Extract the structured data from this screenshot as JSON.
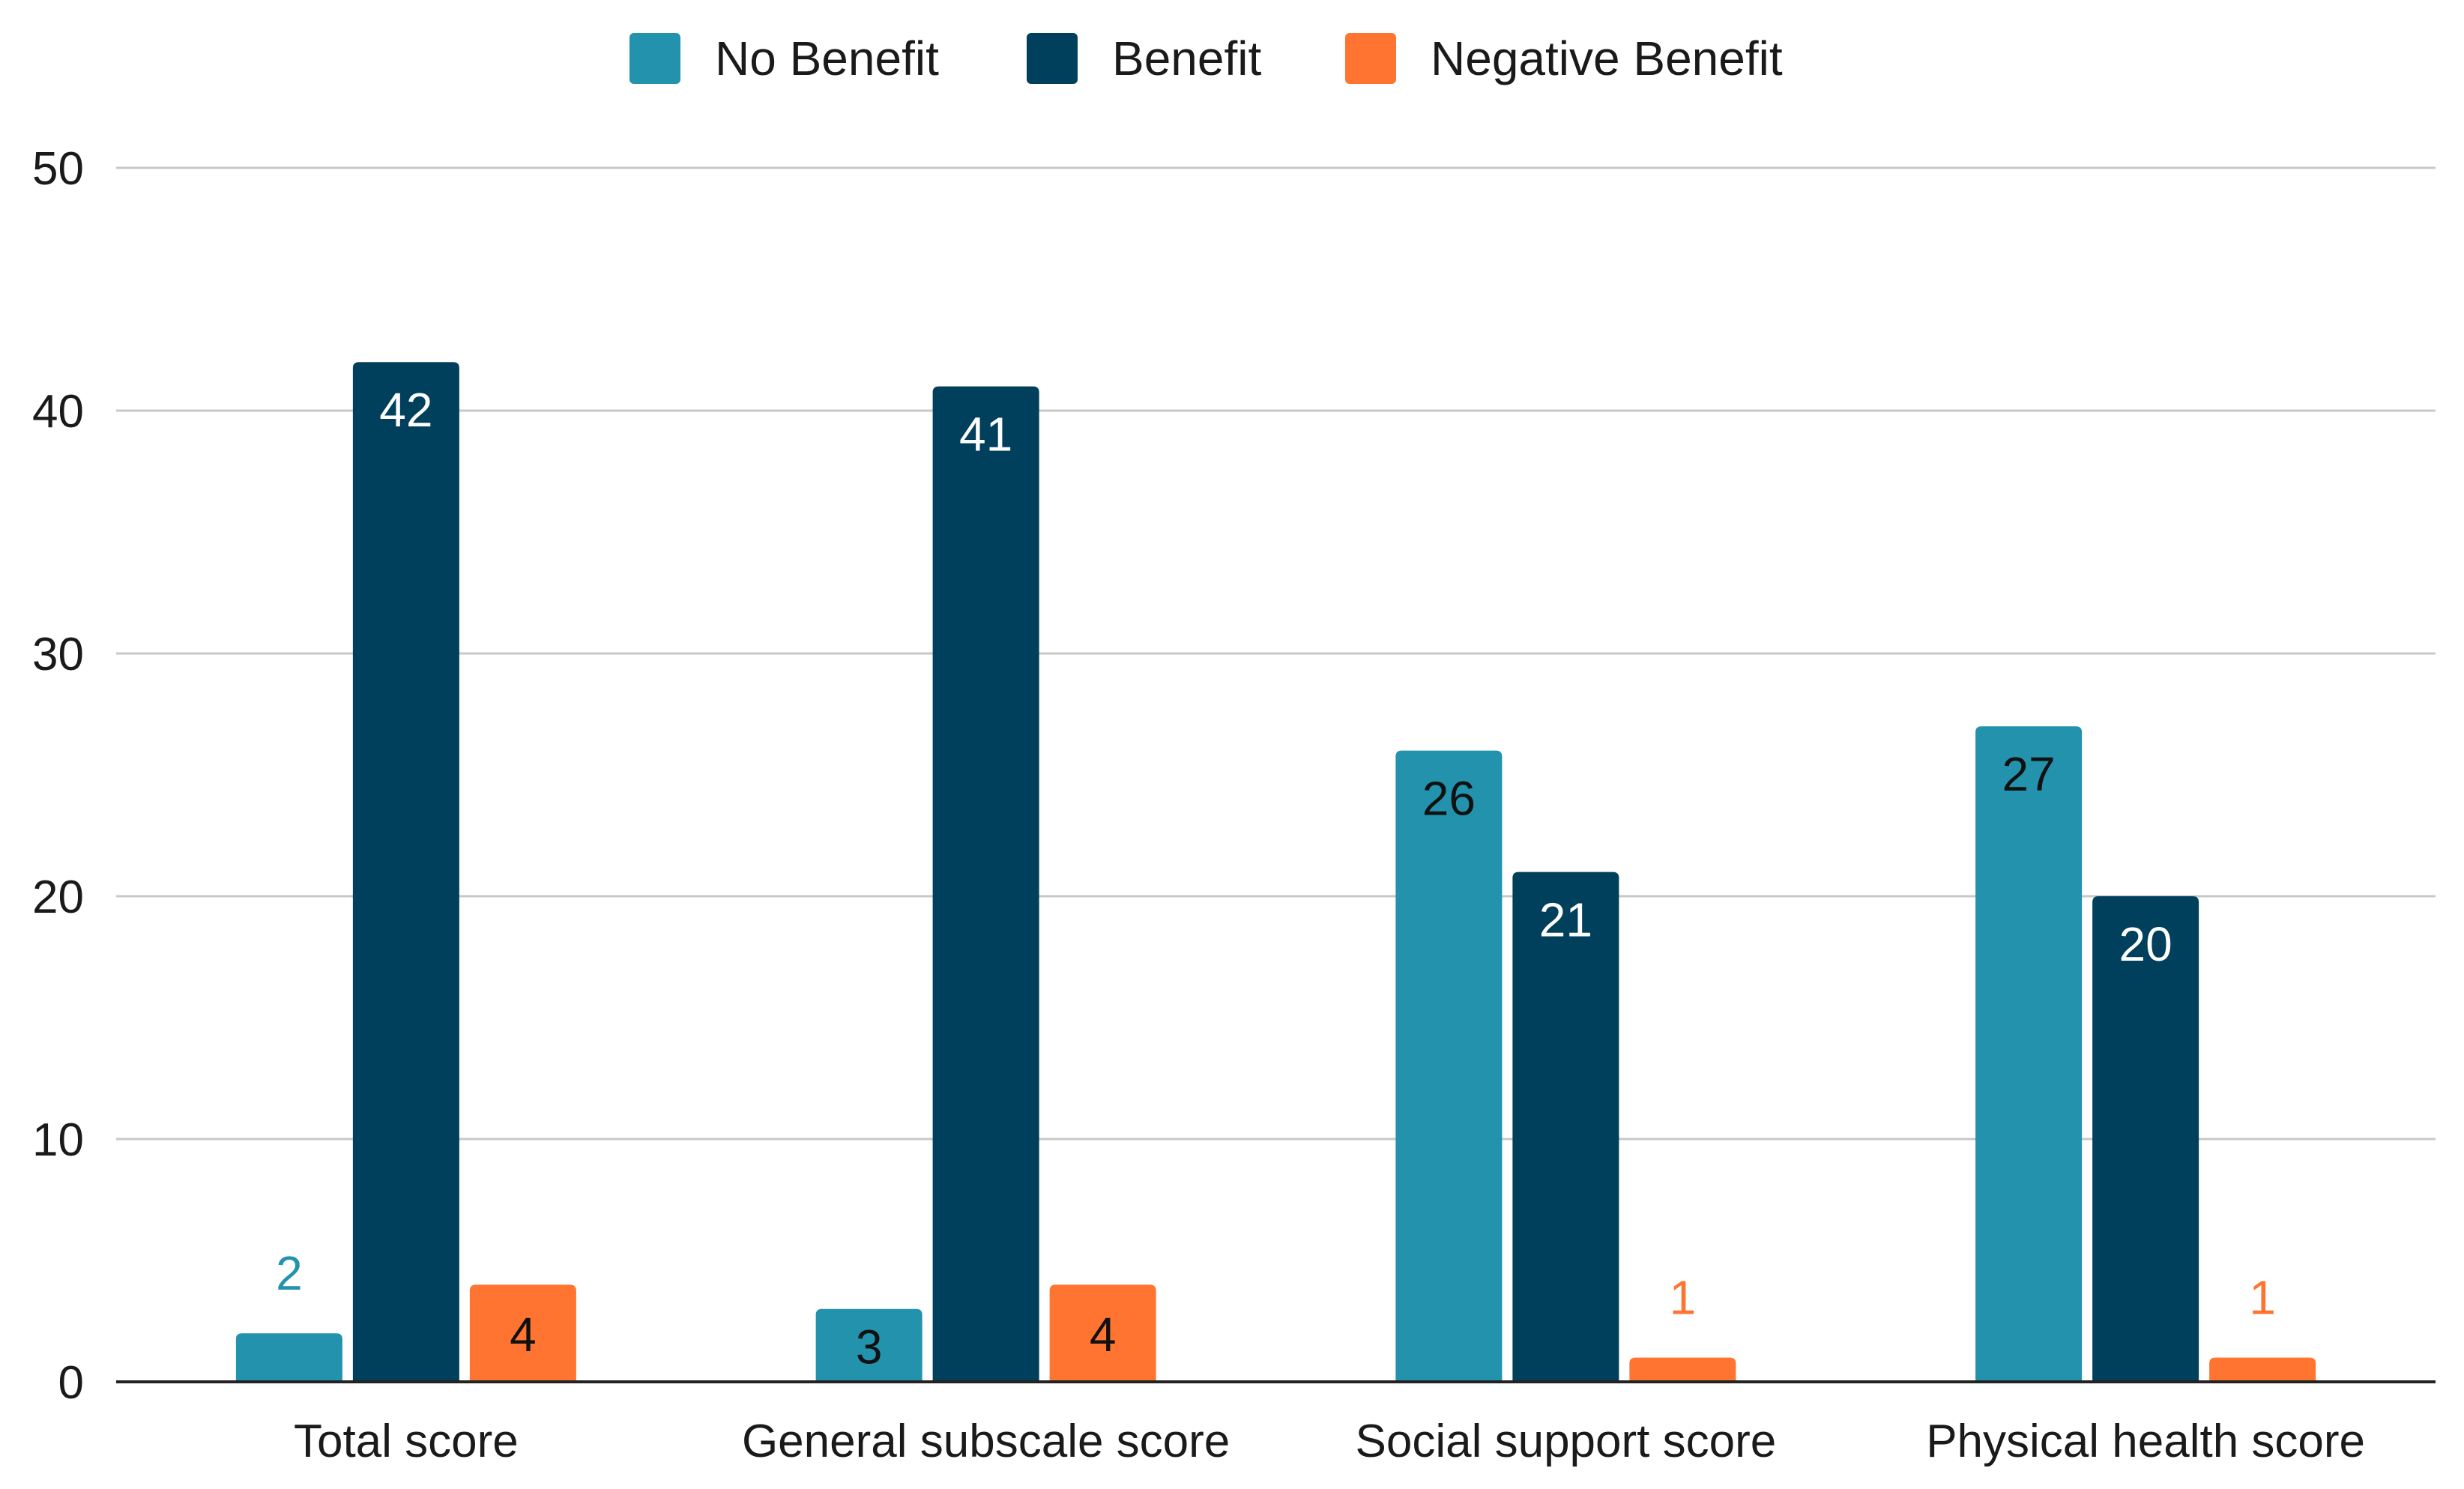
{
  "chart_data": {
    "type": "bar",
    "title": "",
    "xlabel": "",
    "ylabel": "",
    "categories": [
      "Total score",
      "General subscale score",
      "Social support score",
      "Physical health score"
    ],
    "series": [
      {
        "name": "No Benefit",
        "values": [
          2,
          3,
          26,
          27
        ],
        "color": "#2292ad"
      },
      {
        "name": "Benefit",
        "values": [
          42,
          41,
          21,
          20
        ],
        "color": "#00405d"
      },
      {
        "name": "Negative Benefit",
        "values": [
          4,
          4,
          1,
          1
        ],
        "color": "#ff7430"
      }
    ],
    "ylim": [
      0,
      50
    ],
    "yticks": [
      0,
      10,
      20,
      30,
      40,
      50
    ],
    "grid": true,
    "legend_position": "top-center",
    "data_labels": true
  }
}
